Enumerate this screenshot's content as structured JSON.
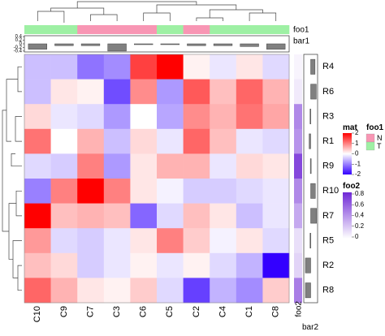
{
  "chart_data": {
    "type": "heatmap",
    "columns": [
      "C10",
      "C9",
      "C7",
      "C3",
      "C6",
      "C5",
      "C2",
      "C4",
      "C1",
      "C8"
    ],
    "rows": [
      "R4",
      "R6",
      "R3",
      "R1",
      "R9",
      "R10",
      "R7",
      "R5",
      "R2",
      "R8"
    ],
    "matrix": [
      [
        -0.5,
        -0.5,
        -1.1,
        -0.9,
        1.5,
        2.4,
        0.1,
        -0.2,
        0.2,
        -0.3
      ],
      [
        -0.5,
        0.2,
        0.1,
        -1.4,
        0.9,
        -0.8,
        1.3,
        0.5,
        1.2,
        0.6
      ],
      [
        0.3,
        -0.2,
        -0.3,
        -0.8,
        0.0,
        -0.7,
        0.9,
        0.6,
        1.1,
        0.7
      ],
      [
        1.1,
        0.0,
        0.6,
        -0.5,
        0.3,
        -0.2,
        1.2,
        0.5,
        -0.2,
        -0.3
      ],
      [
        -0.3,
        -0.4,
        1.0,
        -0.8,
        0.2,
        0.6,
        0.6,
        -0.2,
        0.3,
        0.2
      ],
      [
        -1.0,
        1.0,
        2.0,
        1.0,
        0.2,
        -0.1,
        -0.4,
        -0.4,
        -0.3,
        -0.2
      ],
      [
        2.0,
        0.5,
        0.6,
        0.5,
        -1.2,
        -0.3,
        0.5,
        0.2,
        -0.5,
        -0.2
      ],
      [
        0.8,
        -0.3,
        -0.4,
        -0.2,
        0.2,
        1.0,
        0.4,
        -0.1,
        0.2,
        -0.3
      ],
      [
        0.5,
        0.3,
        -0.4,
        -0.2,
        0.1,
        -0.2,
        0.1,
        -0.3,
        -0.6,
        -2.0
      ],
      [
        1.2,
        0.6,
        0.2,
        0.1,
        0.4,
        -0.3,
        -1.5,
        -0.6,
        -0.9,
        0.4
      ]
    ],
    "color_scale": {
      "name": "mat",
      "breaks": [
        -2,
        -1,
        0,
        1,
        2
      ],
      "low": "#3300ff",
      "mid": "#ffffff",
      "high": "#ff0000"
    },
    "top_annotation": {
      "foo1": {
        "name": "foo1",
        "values": [
          "T",
          "T",
          "N",
          "N",
          "N",
          "T",
          "N",
          "T",
          "T",
          "T"
        ],
        "colors": {
          "N": "#f896b4",
          "T": "#9ef0a4"
        },
        "legend_labels": [
          "N",
          "T"
        ]
      },
      "bar1": {
        "name": "bar1",
        "values": [
          -0.3,
          -0.1,
          -0.1,
          -0.4,
          0.0,
          -0.02,
          -0.1,
          -0.1,
          -0.15,
          -0.3
        ],
        "ticks": [
          "0.4",
          "0.2",
          "0",
          "-0.2",
          "-0.4"
        ],
        "ylim": [
          -0.45,
          0.45
        ]
      }
    },
    "right_annotation": {
      "foo2": {
        "name": "foo2",
        "values": [
          0.05,
          0.1,
          0.55,
          0.5,
          0.85,
          0.55,
          0.4,
          0.15,
          0.2,
          0.6
        ],
        "ticks": [
          "0.8",
          "0.6",
          "0.4",
          "0.2",
          "0"
        ],
        "low": "#ffffff",
        "high": "#6f28d6"
      },
      "bar2": {
        "name": "bar2",
        "values": [
          0.7,
          0.9,
          -0.1,
          -0.25,
          -0.05,
          0.75,
          0.95,
          -0.1,
          -0.85,
          -0.85
        ],
        "xlim": [
          -1,
          1
        ]
      }
    },
    "legend_titles": [
      "mat",
      "foo1",
      "foo2"
    ]
  }
}
